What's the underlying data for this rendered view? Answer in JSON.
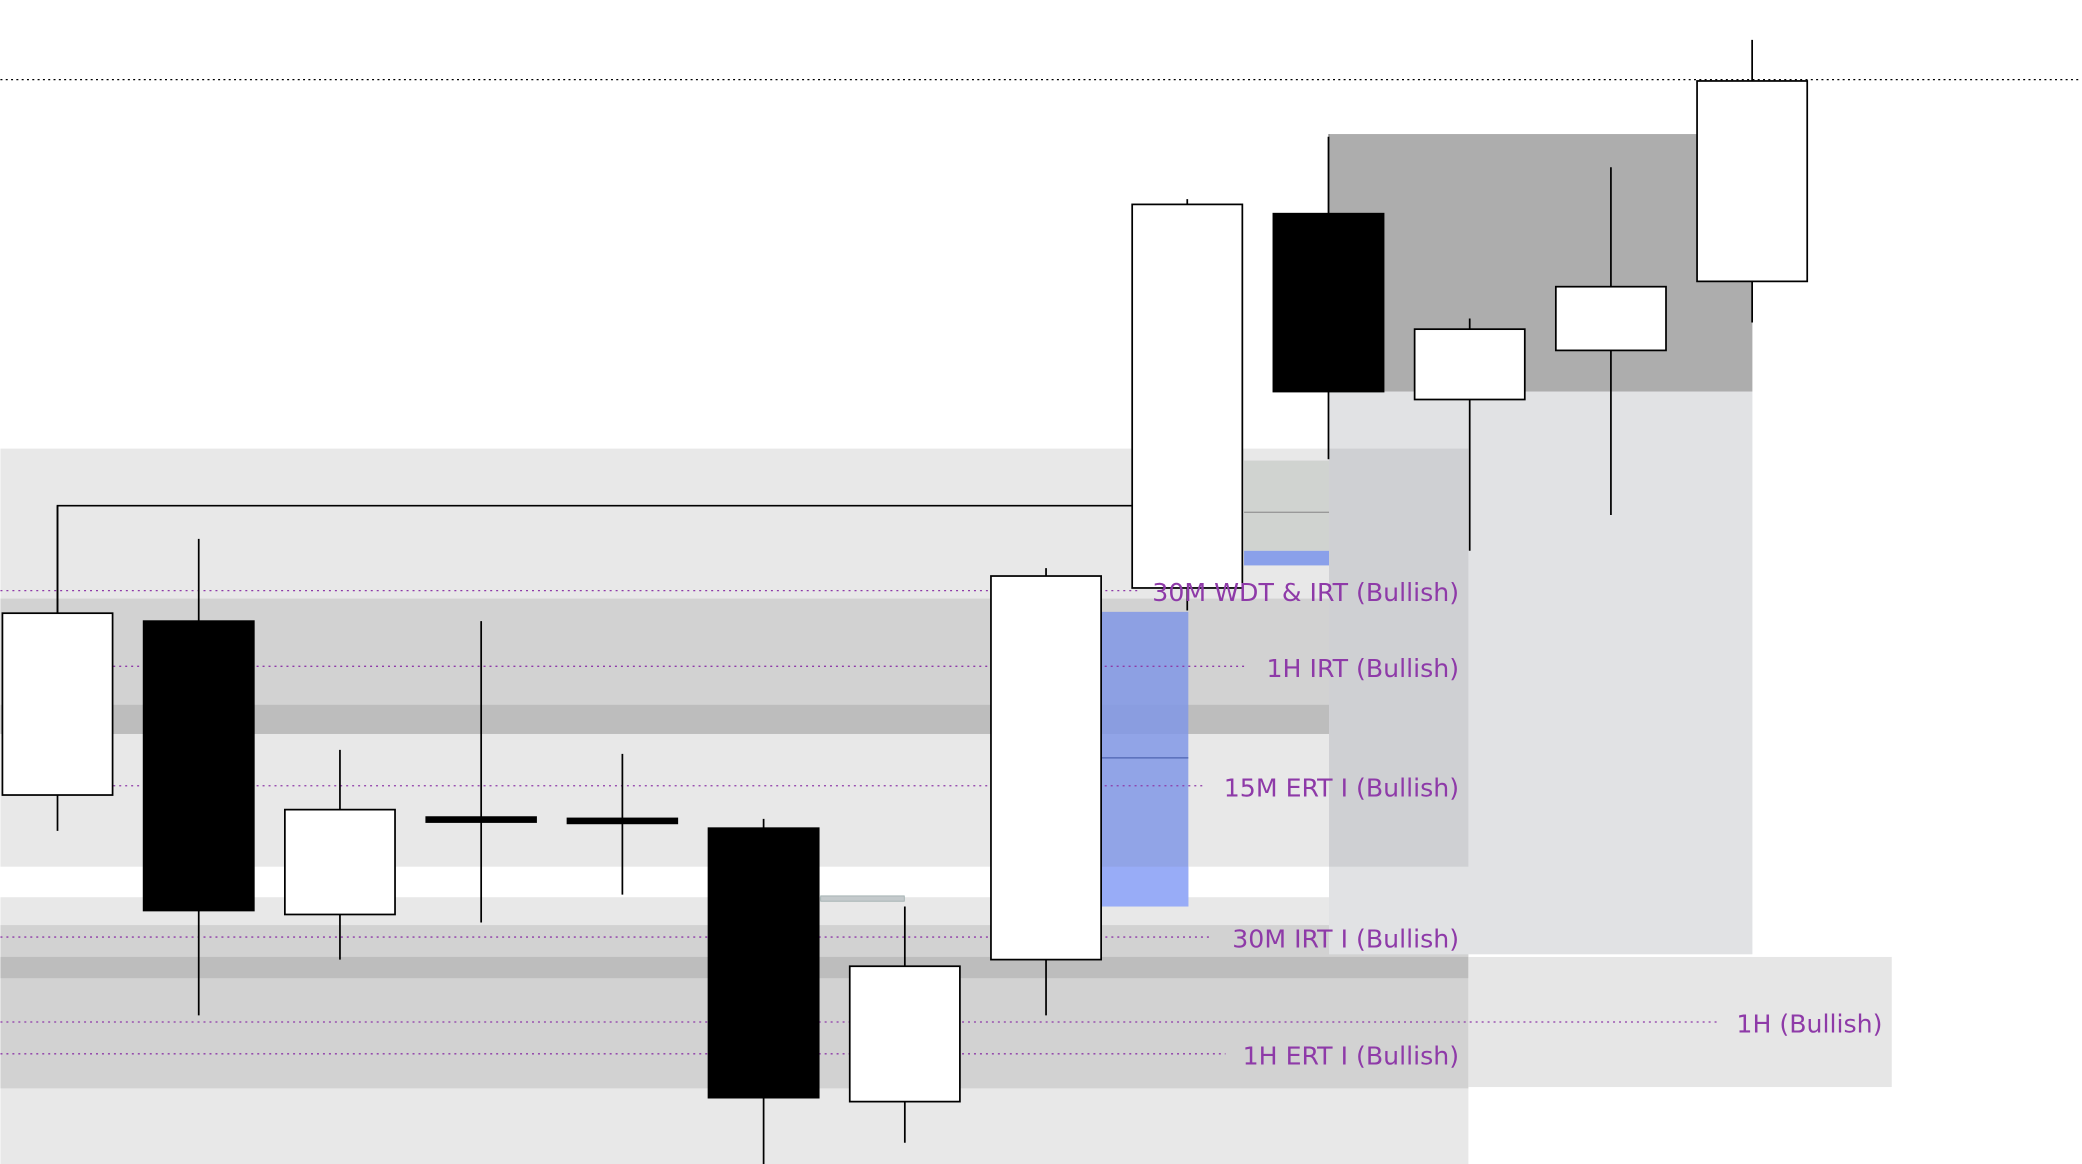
{
  "chart_data": {
    "type": "candlestick",
    "title": "",
    "xlabel": "",
    "ylabel": "",
    "grid": false,
    "price_units": "relative (no price axis printed)",
    "candles": [
      {
        "open": 278,
        "high": 496,
        "low": 251,
        "close": 415
      },
      {
        "open": 409,
        "high": 471,
        "low": 112,
        "close": 191
      },
      {
        "open": 188,
        "high": 312,
        "low": 154,
        "close": 267
      },
      {
        "open": 260,
        "high": 409,
        "low": 182,
        "close": 260
      },
      {
        "open": 259,
        "high": 309,
        "low": 203,
        "close": 259
      },
      {
        "open": 253,
        "high": 260,
        "low": 0,
        "close": 50
      },
      {
        "open": 47,
        "high": 194,
        "low": 16,
        "close": 149
      },
      {
        "open": 154,
        "high": 449,
        "low": 112,
        "close": 443
      },
      {
        "open": 434,
        "high": 727,
        "low": 417,
        "close": 723
      },
      {
        "open": 716,
        "high": 774,
        "low": 531,
        "close": 582
      },
      {
        "open": 576,
        "high": 637,
        "low": 462,
        "close": 629
      },
      {
        "open": 613,
        "high": 751,
        "low": 489,
        "close": 661
      },
      {
        "open": 665,
        "high": 847,
        "low": 634,
        "close": 816
      }
    ],
    "levels": [
      {
        "label": "30M WDT & IRT (Bullish)",
        "price": 432
      },
      {
        "label": "1H IRT (Bullish)",
        "price": 375
      },
      {
        "label": "15M ERT I (Bullish)",
        "price": 285
      },
      {
        "label": "30M IRT I (Bullish)",
        "price": 171
      },
      {
        "label": "1H (Bullish)",
        "price": 107
      },
      {
        "label": "1H ERT I (Bullish)",
        "price": 83
      }
    ],
    "colors": {
      "bullish_candle": "#ffffff",
      "bearish_candle": "#000000",
      "level_label": "#8e3aa8",
      "zone_light": "#e8e8e8",
      "zone_mid": "#d2d2d2",
      "zone_dark": "#adadad",
      "fvg_blue": "#8198e6"
    }
  }
}
